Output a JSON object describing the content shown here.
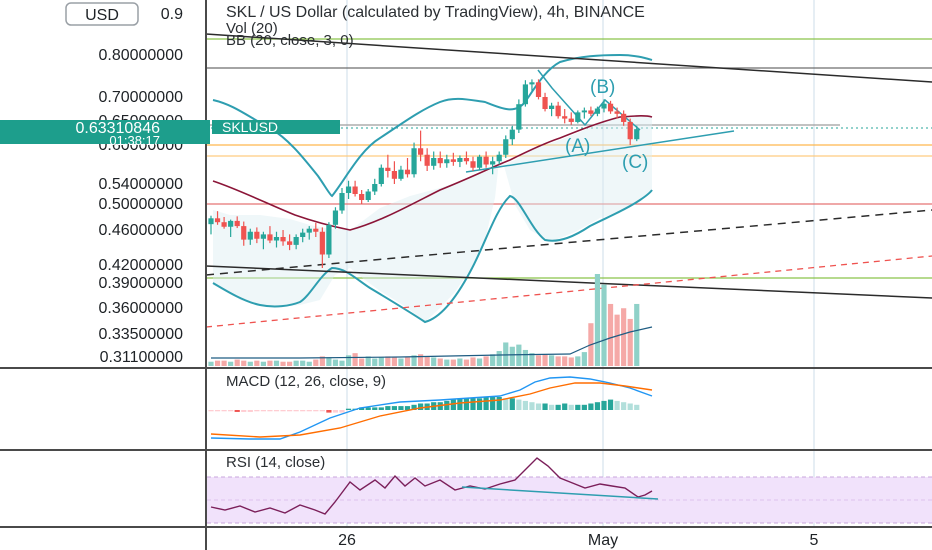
{
  "chart_data": {
    "type": "candlestick",
    "title": "SKL / US Dollar (calculated by TradingView), 4h, BINANCE",
    "indicators_legend": [
      "Vol (20)",
      "BB (20, close, 3, 0)"
    ],
    "currency_button": "USD",
    "price_axis_ticks": [
      {
        "v": 0.9,
        "label": "0.9"
      },
      {
        "v": 0.8,
        "label": "0.80000000"
      },
      {
        "v": 0.7,
        "label": "0.70000000"
      },
      {
        "v": 0.65,
        "label": "0.65000000"
      },
      {
        "v": 0.6,
        "label": "0.60000000"
      },
      {
        "v": 0.54,
        "label": "0.54000000"
      },
      {
        "v": 0.5,
        "label": "0.50000000"
      },
      {
        "v": 0.46,
        "label": "0.46000000"
      },
      {
        "v": 0.42,
        "label": "0.42000000"
      },
      {
        "v": 0.39,
        "label": "0.39000000"
      },
      {
        "v": 0.36,
        "label": "0.36000000"
      },
      {
        "v": 0.335,
        "label": "0.33500000"
      },
      {
        "v": 0.311,
        "label": "0.31100000"
      }
    ],
    "last_price": {
      "label": "0.63310846",
      "countdown": "01:38:17",
      "symbol": "SKLUSD",
      "value": 0.6331
    },
    "x_ticks": [
      {
        "label": "26",
        "x": 347
      },
      {
        "label": "May",
        "x": 603
      },
      {
        "label": "5",
        "x": 814
      }
    ],
    "candles": [
      {
        "o": 0.469,
        "h": 0.482,
        "l": 0.455,
        "c": 0.478
      },
      {
        "o": 0.478,
        "h": 0.489,
        "l": 0.468,
        "c": 0.472
      },
      {
        "o": 0.472,
        "h": 0.48,
        "l": 0.462,
        "c": 0.465
      },
      {
        "o": 0.465,
        "h": 0.476,
        "l": 0.452,
        "c": 0.474
      },
      {
        "o": 0.474,
        "h": 0.481,
        "l": 0.463,
        "c": 0.466
      },
      {
        "o": 0.466,
        "h": 0.473,
        "l": 0.442,
        "c": 0.449
      },
      {
        "o": 0.449,
        "h": 0.462,
        "l": 0.443,
        "c": 0.458
      },
      {
        "o": 0.458,
        "h": 0.464,
        "l": 0.445,
        "c": 0.45
      },
      {
        "o": 0.45,
        "h": 0.458,
        "l": 0.438,
        "c": 0.455
      },
      {
        "o": 0.455,
        "h": 0.466,
        "l": 0.445,
        "c": 0.448
      },
      {
        "o": 0.448,
        "h": 0.458,
        "l": 0.44,
        "c": 0.452
      },
      {
        "o": 0.452,
        "h": 0.46,
        "l": 0.442,
        "c": 0.447
      },
      {
        "o": 0.447,
        "h": 0.455,
        "l": 0.437,
        "c": 0.443
      },
      {
        "o": 0.443,
        "h": 0.455,
        "l": 0.438,
        "c": 0.452
      },
      {
        "o": 0.452,
        "h": 0.462,
        "l": 0.446,
        "c": 0.457
      },
      {
        "o": 0.457,
        "h": 0.466,
        "l": 0.449,
        "c": 0.462
      },
      {
        "o": 0.462,
        "h": 0.471,
        "l": 0.452,
        "c": 0.458
      },
      {
        "o": 0.458,
        "h": 0.464,
        "l": 0.415,
        "c": 0.432
      },
      {
        "o": 0.432,
        "h": 0.472,
        "l": 0.428,
        "c": 0.468
      },
      {
        "o": 0.468,
        "h": 0.495,
        "l": 0.462,
        "c": 0.49
      },
      {
        "o": 0.49,
        "h": 0.532,
        "l": 0.485,
        "c": 0.522
      },
      {
        "o": 0.522,
        "h": 0.545,
        "l": 0.51,
        "c": 0.535
      },
      {
        "o": 0.535,
        "h": 0.545,
        "l": 0.515,
        "c": 0.52
      },
      {
        "o": 0.52,
        "h": 0.528,
        "l": 0.5,
        "c": 0.508
      },
      {
        "o": 0.508,
        "h": 0.53,
        "l": 0.504,
        "c": 0.525
      },
      {
        "o": 0.525,
        "h": 0.548,
        "l": 0.518,
        "c": 0.54
      },
      {
        "o": 0.54,
        "h": 0.57,
        "l": 0.535,
        "c": 0.565
      },
      {
        "o": 0.565,
        "h": 0.585,
        "l": 0.55,
        "c": 0.56
      },
      {
        "o": 0.56,
        "h": 0.575,
        "l": 0.54,
        "c": 0.548
      },
      {
        "o": 0.548,
        "h": 0.568,
        "l": 0.545,
        "c": 0.562
      },
      {
        "o": 0.562,
        "h": 0.58,
        "l": 0.55,
        "c": 0.555
      },
      {
        "o": 0.555,
        "h": 0.605,
        "l": 0.55,
        "c": 0.595
      },
      {
        "o": 0.595,
        "h": 0.63,
        "l": 0.575,
        "c": 0.585
      },
      {
        "o": 0.585,
        "h": 0.595,
        "l": 0.56,
        "c": 0.568
      },
      {
        "o": 0.568,
        "h": 0.59,
        "l": 0.562,
        "c": 0.58
      },
      {
        "o": 0.58,
        "h": 0.59,
        "l": 0.565,
        "c": 0.572
      },
      {
        "o": 0.572,
        "h": 0.585,
        "l": 0.565,
        "c": 0.578
      },
      {
        "o": 0.578,
        "h": 0.588,
        "l": 0.568,
        "c": 0.574
      },
      {
        "o": 0.574,
        "h": 0.584,
        "l": 0.566,
        "c": 0.58
      },
      {
        "o": 0.58,
        "h": 0.59,
        "l": 0.57,
        "c": 0.575
      },
      {
        "o": 0.575,
        "h": 0.582,
        "l": 0.56,
        "c": 0.565
      },
      {
        "o": 0.565,
        "h": 0.585,
        "l": 0.562,
        "c": 0.582
      },
      {
        "o": 0.582,
        "h": 0.59,
        "l": 0.565,
        "c": 0.57
      },
      {
        "o": 0.57,
        "h": 0.582,
        "l": 0.555,
        "c": 0.575
      },
      {
        "o": 0.575,
        "h": 0.59,
        "l": 0.57,
        "c": 0.585
      },
      {
        "o": 0.585,
        "h": 0.62,
        "l": 0.58,
        "c": 0.612
      },
      {
        "o": 0.612,
        "h": 0.64,
        "l": 0.6,
        "c": 0.632
      },
      {
        "o": 0.632,
        "h": 0.695,
        "l": 0.625,
        "c": 0.685
      },
      {
        "o": 0.685,
        "h": 0.74,
        "l": 0.68,
        "c": 0.73
      },
      {
        "o": 0.73,
        "h": 0.742,
        "l": 0.715,
        "c": 0.735
      },
      {
        "o": 0.735,
        "h": 0.742,
        "l": 0.695,
        "c": 0.7
      },
      {
        "o": 0.7,
        "h": 0.71,
        "l": 0.67,
        "c": 0.675
      },
      {
        "o": 0.675,
        "h": 0.688,
        "l": 0.66,
        "c": 0.682
      },
      {
        "o": 0.682,
        "h": 0.69,
        "l": 0.655,
        "c": 0.66
      },
      {
        "o": 0.66,
        "h": 0.675,
        "l": 0.645,
        "c": 0.655
      },
      {
        "o": 0.655,
        "h": 0.668,
        "l": 0.642,
        "c": 0.648
      },
      {
        "o": 0.648,
        "h": 0.672,
        "l": 0.645,
        "c": 0.668
      },
      {
        "o": 0.668,
        "h": 0.678,
        "l": 0.655,
        "c": 0.672
      },
      {
        "o": 0.672,
        "h": 0.68,
        "l": 0.66,
        "c": 0.665
      },
      {
        "o": 0.665,
        "h": 0.68,
        "l": 0.66,
        "c": 0.676
      },
      {
        "o": 0.676,
        "h": 0.695,
        "l": 0.668,
        "c": 0.686
      },
      {
        "o": 0.686,
        "h": 0.692,
        "l": 0.665,
        "c": 0.67
      },
      {
        "o": 0.67,
        "h": 0.678,
        "l": 0.655,
        "c": 0.665
      },
      {
        "o": 0.665,
        "h": 0.672,
        "l": 0.64,
        "c": 0.648
      },
      {
        "o": 0.648,
        "h": 0.655,
        "l": 0.6,
        "c": 0.612
      },
      {
        "o": 0.612,
        "h": 0.64,
        "l": 0.608,
        "c": 0.633
      }
    ],
    "volume": [
      4,
      5,
      5,
      4,
      6,
      5,
      4,
      5,
      4,
      5,
      5,
      4,
      4,
      5,
      5,
      4,
      6,
      9,
      8,
      6,
      5,
      10,
      12,
      7,
      9,
      7,
      8,
      9,
      8,
      7,
      8,
      10,
      11,
      9,
      8,
      7,
      6,
      6,
      7,
      6,
      8,
      7,
      9,
      11,
      14,
      22,
      18,
      20,
      15,
      12,
      10,
      11,
      10,
      9,
      9,
      8,
      9,
      13,
      40,
      86,
      76,
      58,
      48,
      54,
      44,
      58
    ],
    "annotations": [
      "(A)",
      "(B)",
      "(C)"
    ],
    "panes": [
      {
        "name": "MACD (12, 26, close, 9)"
      },
      {
        "name": "RSI (14, close)"
      }
    ],
    "colors": {
      "up": "#26a69a",
      "down": "#ef5350",
      "bb": "#2e9eb0",
      "basis": "#8b1538",
      "macd": "#2196f3",
      "signal": "#ff6d00",
      "rsi": "#7b1f5a",
      "rsi_band": "#f1e2fb"
    }
  }
}
